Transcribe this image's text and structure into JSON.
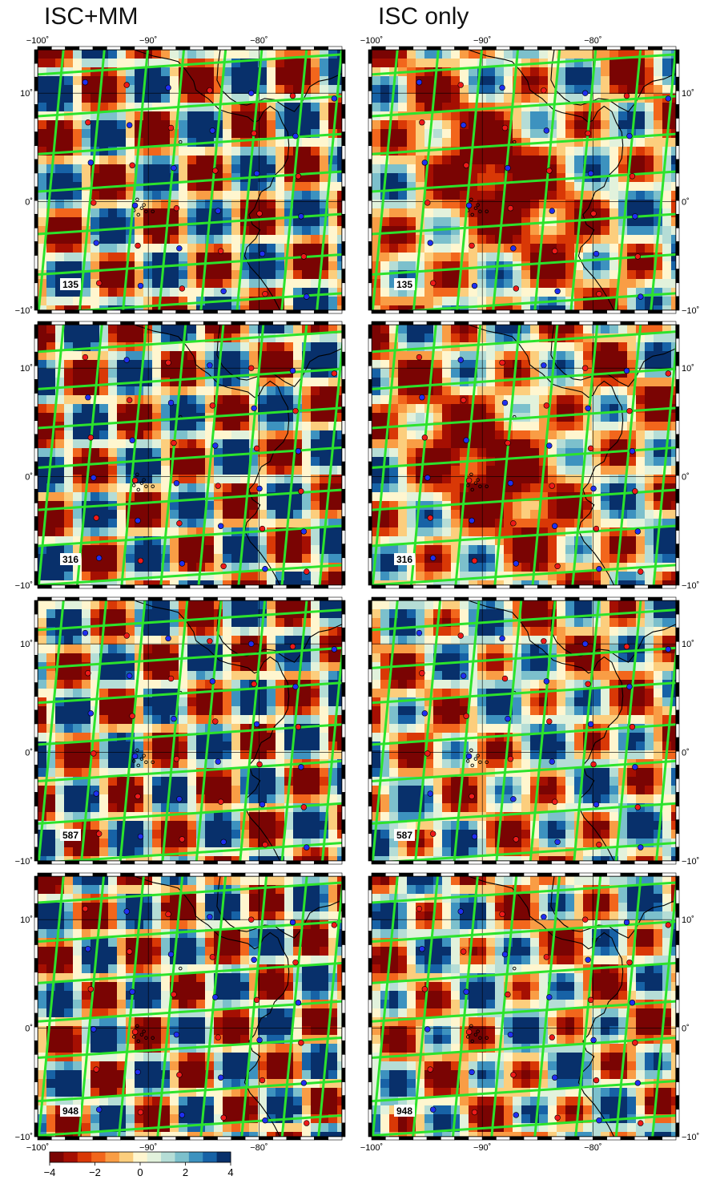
{
  "columns": [
    {
      "title": "ISC+MM"
    },
    {
      "title": "ISC only"
    }
  ],
  "panels": [
    {
      "depth": "135"
    },
    {
      "depth": "316"
    },
    {
      "depth": "587"
    },
    {
      "depth": "948"
    }
  ],
  "axes": {
    "lon_ticks": [
      {
        "value": -100,
        "label": "−100˚"
      },
      {
        "value": -90,
        "label": "−90˚"
      },
      {
        "value": -80,
        "label": "−80˚"
      }
    ],
    "lat_ticks": [
      {
        "value": 10,
        "label": "10˚"
      },
      {
        "value": 0,
        "label": "0˚"
      },
      {
        "value": -10,
        "label": "−10˚"
      }
    ],
    "lon_range": [
      -100,
      -72.5
    ],
    "lat_range": [
      -10,
      14
    ]
  },
  "colorbar": {
    "ticks": [
      {
        "value": -4,
        "label": "−4"
      },
      {
        "value": -2,
        "label": "−2"
      },
      {
        "value": 0,
        "label": "0"
      },
      {
        "value": 2,
        "label": "2"
      },
      {
        "value": 4,
        "label": "4"
      }
    ],
    "range": [
      -4,
      4
    ],
    "colors": [
      "#7a0403",
      "#a50f02",
      "#d93806",
      "#f2661c",
      "#f99d45",
      "#fcce7d",
      "#fff6cf",
      "#e2f2dc",
      "#b5ddd6",
      "#7cc0cc",
      "#3d92bf",
      "#1762a6",
      "#08306b"
    ]
  },
  "style": {
    "grid_line_color": "#2ce32c",
    "red_dot_color": "#ee1a1a",
    "blue_dot_color": "#1f2ff0",
    "coast_color": "#000000"
  }
}
